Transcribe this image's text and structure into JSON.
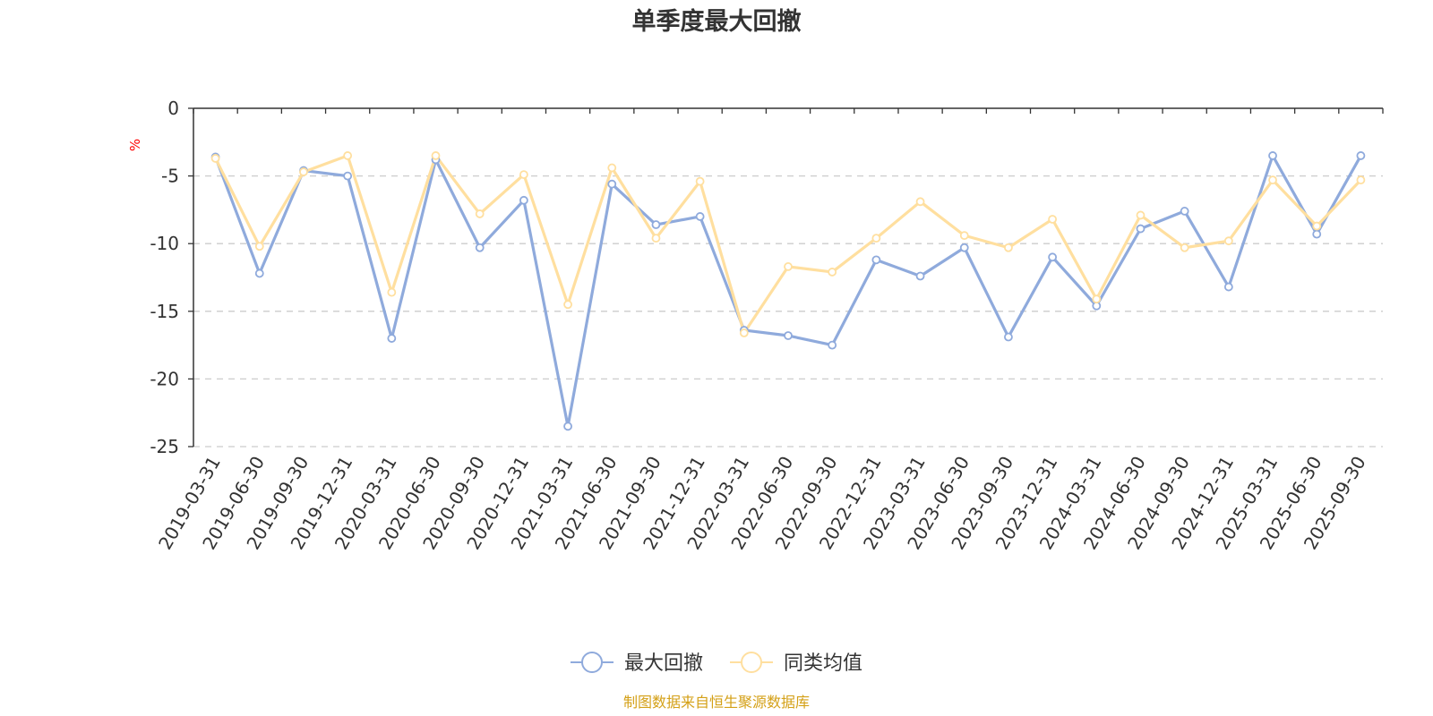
{
  "chart_data": {
    "type": "line",
    "title": "单季度最大回撤",
    "ylabel": "%",
    "ylim": [
      -25,
      0
    ],
    "yticks": [
      0,
      -5,
      -10,
      -15,
      -20,
      -25
    ],
    "categories": [
      "2019-03-31",
      "2019-06-30",
      "2019-09-30",
      "2019-12-31",
      "2020-03-31",
      "2020-06-30",
      "2020-09-30",
      "2020-12-31",
      "2021-03-31",
      "2021-06-30",
      "2021-09-30",
      "2021-12-31",
      "2022-03-31",
      "2022-06-30",
      "2022-09-30",
      "2022-12-31",
      "2023-03-31",
      "2023-06-30",
      "2023-09-30",
      "2023-12-31",
      "2024-03-31",
      "2024-06-30",
      "2024-09-30",
      "2024-12-31",
      "2025-03-31",
      "2025-06-30",
      "2025-09-30"
    ],
    "series": [
      {
        "name": "最大回撤",
        "color": "#8faadc",
        "values": [
          -3.6,
          -12.2,
          -4.6,
          -5.0,
          -17.0,
          -3.8,
          -10.3,
          -6.8,
          -23.5,
          -5.6,
          -8.6,
          -8.0,
          -16.4,
          -16.8,
          -17.5,
          -11.2,
          -12.4,
          -10.3,
          -16.9,
          -11.0,
          -14.6,
          -8.9,
          -7.6,
          -13.2,
          -3.5,
          -9.3,
          -3.5
        ]
      },
      {
        "name": "同类均值",
        "color": "#ffdf9f",
        "values": [
          -3.7,
          -10.2,
          -4.7,
          -3.5,
          -13.6,
          -3.5,
          -7.8,
          -4.9,
          -14.5,
          -4.4,
          -9.6,
          -5.4,
          -16.6,
          -11.7,
          -12.1,
          -9.6,
          -6.9,
          -9.4,
          -10.3,
          -8.2,
          -14.1,
          -7.9,
          -10.3,
          -9.8,
          -5.3,
          -8.7,
          -5.3
        ]
      }
    ],
    "grid": true,
    "legend_position": "bottom-center",
    "source": "制图数据来自恒生聚源数据库"
  }
}
